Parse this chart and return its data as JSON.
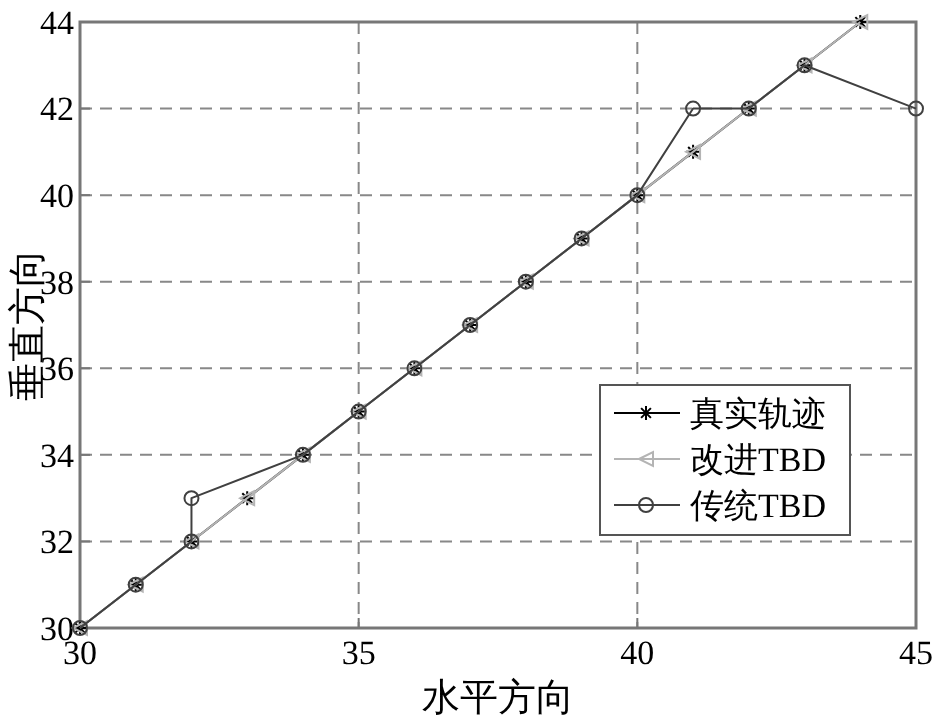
{
  "chart_data": {
    "type": "line",
    "xlabel": "水平方向",
    "ylabel": "垂直方向",
    "xlim": [
      30,
      45
    ],
    "xticks": [
      30,
      35,
      40,
      45
    ],
    "ylim": [
      30,
      44
    ],
    "yticks": [
      30,
      32,
      34,
      36,
      38,
      40,
      42,
      44
    ],
    "grid": true,
    "legend": "right",
    "line_style": "solid",
    "series": [
      {
        "name": "真实轨迹",
        "color": "#000000",
        "marker": "cross",
        "x": [
          30,
          31,
          32,
          33,
          34,
          35,
          36,
          37,
          38,
          39,
          40,
          41,
          42,
          43,
          44
        ],
        "values": [
          30,
          31,
          32,
          33,
          34,
          35,
          36,
          37,
          38,
          39,
          40,
          41,
          42,
          43,
          44
        ]
      },
      {
        "name": "改进TBD",
        "color": "#b4b4b4",
        "marker": "triangle",
        "x": [
          30,
          31,
          32,
          33,
          34,
          35,
          36,
          37,
          38,
          39,
          40,
          41,
          42,
          43,
          44
        ],
        "values": [
          30,
          31,
          32,
          33,
          34,
          35,
          36,
          37,
          38,
          39,
          40,
          41,
          42,
          43,
          44
        ]
      },
      {
        "name": "传统TBD",
        "color": "#404040",
        "marker": "circle",
        "x": [
          30,
          31,
          32,
          32,
          34,
          35,
          36,
          37,
          38,
          39,
          40,
          41,
          42,
          43,
          45
        ],
        "values": [
          30,
          31,
          32,
          33,
          34,
          35,
          36,
          37,
          38,
          39,
          40,
          42,
          42,
          43,
          42
        ]
      }
    ]
  }
}
